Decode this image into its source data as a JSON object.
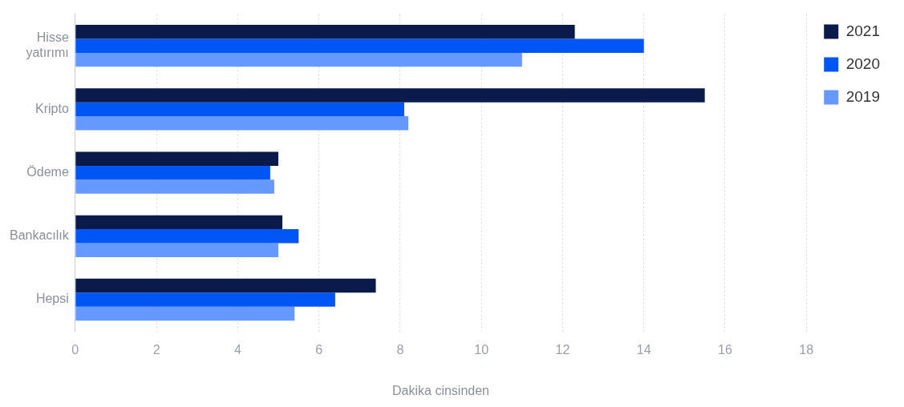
{
  "chart_data": {
    "type": "bar",
    "orientation": "horizontal",
    "xlabel": "Dakika cinsinden",
    "categories": [
      "Hisse yatırımı",
      "Kripto",
      "Ödeme",
      "Bankacılık",
      "Hepsi"
    ],
    "series": [
      {
        "name": "2021",
        "color": "#0a1a4a",
        "values": [
          12.3,
          15.5,
          5.0,
          5.1,
          7.4
        ]
      },
      {
        "name": "2020",
        "color": "#0055f5",
        "values": [
          14.0,
          8.1,
          4.8,
          5.5,
          6.4
        ]
      },
      {
        "name": "2019",
        "color": "#6699ff",
        "values": [
          11.0,
          8.2,
          4.9,
          5.0,
          5.4
        ]
      }
    ],
    "xlim": [
      0,
      18
    ],
    "xticks": [
      0,
      2,
      4,
      6,
      8,
      10,
      12,
      14,
      16,
      18
    ],
    "grid": "x",
    "legend": "top right"
  }
}
